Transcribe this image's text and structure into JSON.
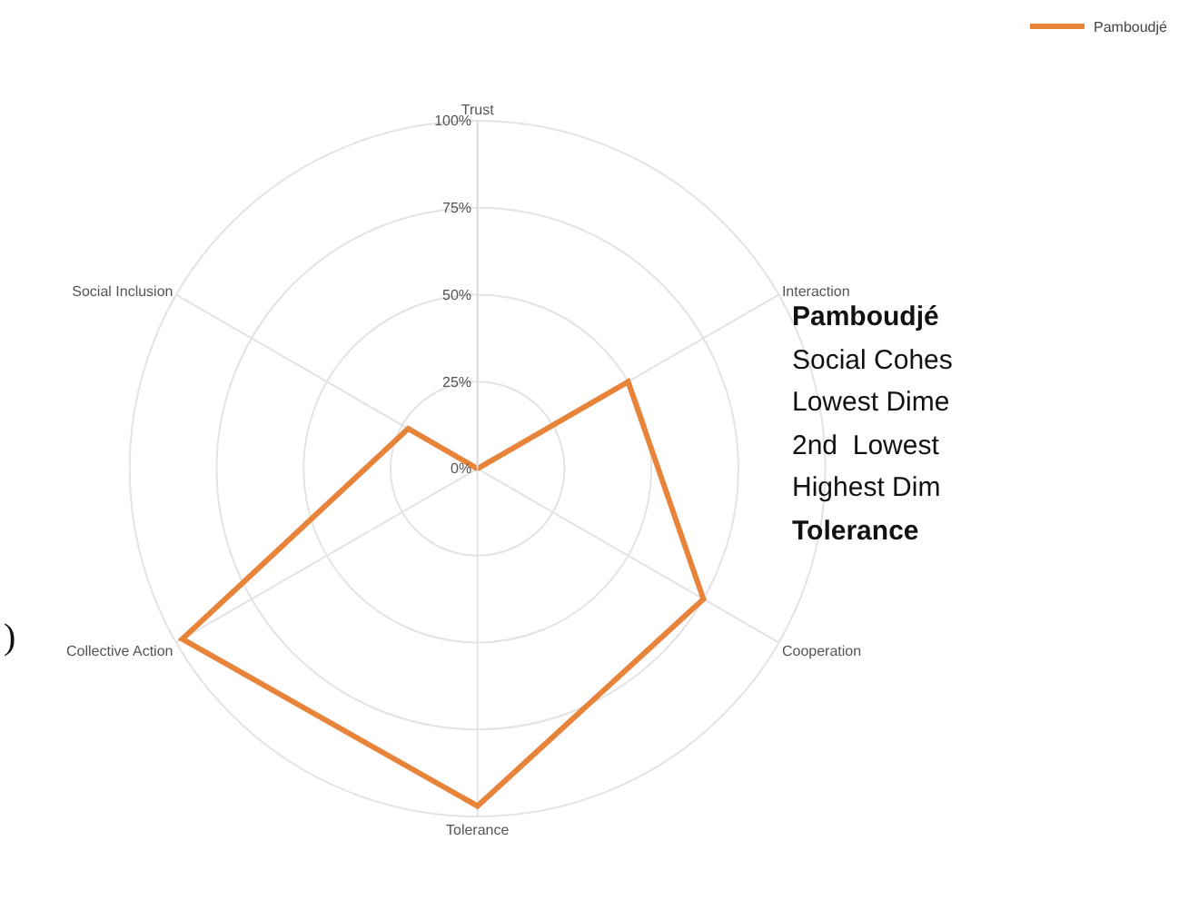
{
  "chart_data": {
    "type": "radar",
    "categories": [
      "Trust",
      "Interaction",
      "Cooperation",
      "Tolerance",
      "Collective Action",
      "Social Inclusion"
    ],
    "series": [
      {
        "name": "Pamboudjé",
        "color": "#e8833a",
        "values": [
          0,
          50,
          75,
          97,
          98,
          23
        ]
      }
    ],
    "ylim": [
      0,
      100
    ],
    "yticks": [
      {
        "value": 0,
        "label": "0%"
      },
      {
        "value": 25,
        "label": "25%"
      },
      {
        "value": 50,
        "label": "50%"
      },
      {
        "value": 75,
        "label": "75%"
      },
      {
        "value": 100,
        "label": "100%"
      }
    ],
    "grid": true,
    "legend": "top right",
    "marker": "none",
    "line_style": "solid",
    "annotations": [
      "Pamboudjé",
      "Social Cohes",
      "Lowest Dime",
      "2nd  Lowest",
      "Highest Dim",
      "Tolerance",
      ")"
    ]
  }
}
